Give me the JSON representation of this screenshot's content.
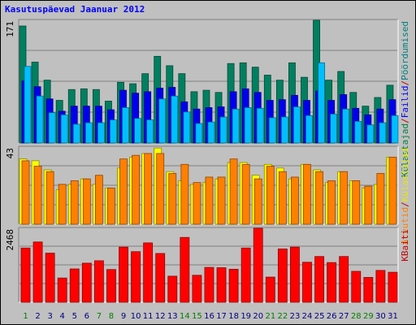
{
  "chart_data": [
    {
      "type": "bar",
      "title": "Kasutuspäevad Jaanuar 2012",
      "panel": "top",
      "ymax_label": "171",
      "ylim": [
        0,
        171
      ],
      "right_label_parts": [
        {
          "text": "Külastajad",
          "color": "#008040"
        },
        {
          "text": "/",
          "color": "#c00000"
        },
        {
          "text": "Failid",
          "color": "#0000ff"
        },
        {
          "text": "/",
          "color": "#c00000"
        },
        {
          "text": "Pöördumised",
          "color": "#008080"
        }
      ],
      "categories": [
        "1",
        "2",
        "3",
        "4",
        "5",
        "6",
        "7",
        "8",
        "9",
        "10",
        "11",
        "12",
        "13",
        "14",
        "15",
        "16",
        "17",
        "18",
        "19",
        "20",
        "21",
        "22",
        "23",
        "24",
        "25",
        "26",
        "27",
        "28",
        "29",
        "30",
        "31"
      ],
      "series": [
        {
          "name": "Pöördumised",
          "color": "#008060",
          "values": [
            162,
            112,
            87,
            59,
            74,
            75,
            74,
            58,
            84,
            82,
            96,
            120,
            107,
            96,
            71,
            73,
            70,
            110,
            111,
            105,
            94,
            87,
            111,
            91,
            172,
            87,
            99,
            70,
            51,
            63,
            80
          ]
        },
        {
          "name": "Failid",
          "color": "#0000ee",
          "values": [
            86,
            78,
            61,
            44,
            51,
            51,
            51,
            46,
            73,
            69,
            71,
            76,
            77,
            57,
            47,
            49,
            50,
            71,
            75,
            70,
            59,
            60,
            66,
            59,
            72,
            59,
            67,
            48,
            39,
            47,
            60
          ]
        },
        {
          "name": "Külastajad",
          "color": "#00bfff",
          "values": [
            106,
            65,
            42,
            39,
            26,
            28,
            28,
            32,
            49,
            34,
            32,
            61,
            65,
            43,
            27,
            29,
            36,
            47,
            49,
            48,
            35,
            36,
            50,
            38,
            111,
            40,
            47,
            30,
            25,
            28,
            38
          ]
        }
      ]
    },
    {
      "type": "bar",
      "panel": "middle",
      "ymax_label": "43",
      "ylim": [
        0,
        43
      ],
      "right_label_parts": [
        {
          "text": "Arvutid",
          "color": "#ff8000"
        },
        {
          "text": "/",
          "color": "#c00000"
        },
        {
          "text": "Külastajad",
          "color": "#e8e800"
        }
      ],
      "categories": [
        "1",
        "2",
        "3",
        "4",
        "5",
        "6",
        "7",
        "8",
        "9",
        "10",
        "11",
        "12",
        "13",
        "14",
        "15",
        "16",
        "17",
        "18",
        "19",
        "20",
        "21",
        "22",
        "23",
        "24",
        "25",
        "26",
        "27",
        "28",
        "29",
        "30",
        "31"
      ],
      "series": [
        {
          "name": "Külastajad",
          "color": "#ffff00",
          "values": [
            36,
            35,
            30,
            19,
            22,
            25,
            22,
            20,
            31,
            37,
            39,
            42,
            29,
            24,
            22,
            23,
            25,
            34,
            34,
            27,
            33,
            31,
            25,
            33,
            30,
            23,
            29,
            24,
            20,
            22,
            37
          ]
        },
        {
          "name": "Arvutid",
          "color": "#ff8000",
          "values": [
            35,
            32,
            29,
            22,
            24,
            25,
            27,
            20,
            36,
            38,
            39,
            39,
            28,
            33,
            23,
            26,
            26,
            36,
            33,
            25,
            32,
            29,
            26,
            33,
            29,
            24,
            29,
            24,
            21,
            28,
            37
          ]
        }
      ]
    },
    {
      "type": "bar",
      "panel": "bottom",
      "ymax_label": "2468",
      "ylim": [
        0,
        2468
      ],
      "right_label_parts": [
        {
          "text": "KBaiti",
          "color": "#c00000"
        }
      ],
      "categories": [
        "1",
        "2",
        "3",
        "4",
        "5",
        "6",
        "7",
        "8",
        "9",
        "10",
        "11",
        "12",
        "13",
        "14",
        "15",
        "16",
        "17",
        "18",
        "19",
        "20",
        "21",
        "22",
        "23",
        "24",
        "25",
        "26",
        "27",
        "28",
        "29",
        "30",
        "31"
      ],
      "series": [
        {
          "name": "KBaiti",
          "color": "#ff0000",
          "values": [
            1790,
            1990,
            1620,
            800,
            1100,
            1290,
            1370,
            1080,
            1820,
            1670,
            1960,
            1610,
            860,
            2140,
            890,
            1150,
            1140,
            1090,
            1790,
            2550,
            830,
            1760,
            1820,
            1320,
            1510,
            1310,
            1510,
            1020,
            820,
            1050,
            990
          ]
        }
      ]
    }
  ],
  "x_label_colors": [
    "#008000",
    "#000080",
    "#000080",
    "#000080",
    "#000080",
    "#000080",
    "#008000",
    "#008000",
    "#000080",
    "#000080",
    "#000080",
    "#000080",
    "#000080",
    "#008000",
    "#008000",
    "#000080",
    "#000080",
    "#000080",
    "#000080",
    "#000080",
    "#008000",
    "#008000",
    "#000080",
    "#000080",
    "#000080",
    "#000080",
    "#000080",
    "#008000",
    "#008000",
    "#000080",
    "#000080"
  ]
}
